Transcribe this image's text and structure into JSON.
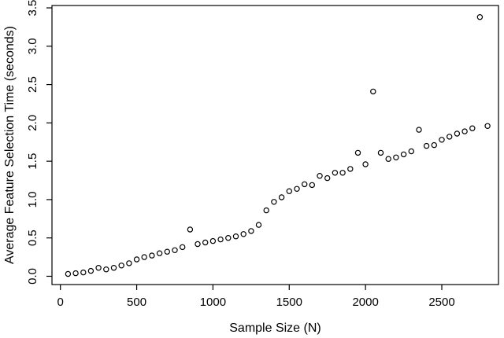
{
  "figure": {
    "background_color": "#ffffff",
    "axis_color": "#000000",
    "point_color": "#000000"
  },
  "chart_data": {
    "type": "scatter",
    "title": "",
    "xlabel": "Sample Size (N)",
    "ylabel": "Average Feature Selection Time (seconds)",
    "marker": "open-circle",
    "grid": false,
    "legend": null,
    "xlim": [
      -55.2,
      2871.6
    ],
    "ylim": [
      -0.108,
      3.531
    ],
    "x_ticks": [
      0,
      500,
      1000,
      1500,
      2000,
      2500
    ],
    "x_tick_labels": [
      "0",
      "500",
      "1000",
      "1500",
      "2000",
      "2500"
    ],
    "y_ticks": [
      0.0,
      0.5,
      1.0,
      1.5,
      2.0,
      2.5,
      3.0,
      3.5
    ],
    "y_tick_labels": [
      "0.0",
      "0.5",
      "1.0",
      "1.5",
      "2.0",
      "2.5",
      "3.0",
      "3.5"
    ],
    "x": [
      50,
      100,
      150,
      200,
      250,
      300,
      350,
      400,
      450,
      500,
      550,
      600,
      650,
      700,
      750,
      800,
      850,
      900,
      950,
      1000,
      1050,
      1100,
      1150,
      1200,
      1250,
      1300,
      1350,
      1400,
      1450,
      1500,
      1550,
      1600,
      1650,
      1700,
      1750,
      1800,
      1850,
      1900,
      1950,
      2000,
      2050,
      2100,
      2150,
      2200,
      2250,
      2300,
      2350,
      2400,
      2450,
      2500,
      2550,
      2600,
      2650,
      2700,
      2750,
      2800
    ],
    "y": [
      0.03,
      0.04,
      0.05,
      0.07,
      0.11,
      0.09,
      0.11,
      0.14,
      0.17,
      0.22,
      0.25,
      0.27,
      0.3,
      0.32,
      0.34,
      0.38,
      0.61,
      0.42,
      0.44,
      0.46,
      0.48,
      0.5,
      0.52,
      0.55,
      0.59,
      0.67,
      0.86,
      0.97,
      1.03,
      1.11,
      1.14,
      1.2,
      1.19,
      1.31,
      1.28,
      1.35,
      1.35,
      1.4,
      1.61,
      1.46,
      2.41,
      1.61,
      1.53,
      1.55,
      1.59,
      1.63,
      1.91,
      1.7,
      1.71,
      1.78,
      1.82,
      1.86,
      1.89,
      1.93,
      3.38,
      1.96
    ],
    "outliers": [
      {
        "x": 850,
        "y": 0.61
      },
      {
        "x": 2050,
        "y": 2.41
      },
      {
        "x": 2350,
        "y": 1.91
      },
      {
        "x": 2750,
        "y": 3.38
      }
    ]
  }
}
